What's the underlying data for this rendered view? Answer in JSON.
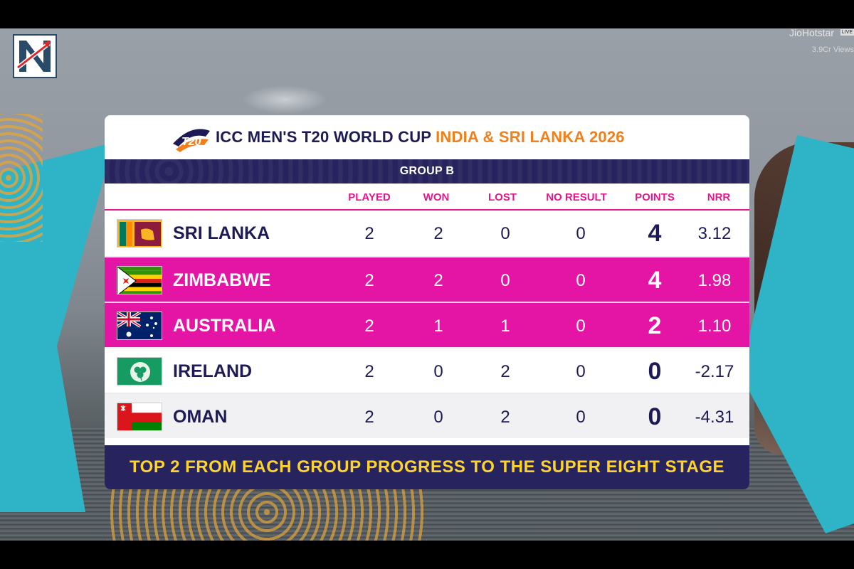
{
  "broadcast": {
    "name": "JioHotstar",
    "live": "LIVE",
    "views": "3.9Cr Views"
  },
  "header": {
    "title": "ICC MEN'S T20 WORLD CUP",
    "title_accent": "INDIA & SRI LANKA 2026",
    "logo_text": "T20"
  },
  "group": "GROUP B",
  "columns": [
    "PLAYED",
    "WON",
    "LOST",
    "NO RESULT",
    "POINTS",
    "NRR"
  ],
  "rows": [
    {
      "team": "SRI LANKA",
      "played": "2",
      "won": "2",
      "lost": "0",
      "no_result": "0",
      "points": "4",
      "nrr": "3.12",
      "highlight": false
    },
    {
      "team": "ZIMBABWE",
      "played": "2",
      "won": "2",
      "lost": "0",
      "no_result": "0",
      "points": "4",
      "nrr": "1.98",
      "highlight": true
    },
    {
      "team": "AUSTRALIA",
      "played": "2",
      "won": "1",
      "lost": "1",
      "no_result": "0",
      "points": "2",
      "nrr": "1.10",
      "highlight": true
    },
    {
      "team": "IRELAND",
      "played": "2",
      "won": "0",
      "lost": "2",
      "no_result": "0",
      "points": "0",
      "nrr": "-2.17",
      "highlight": false
    },
    {
      "team": "OMAN",
      "played": "2",
      "won": "0",
      "lost": "2",
      "no_result": "0",
      "points": "0",
      "nrr": "-4.31",
      "highlight": false
    }
  ],
  "footer": "TOP 2 FROM EACH GROUP PROGRESS TO THE SUPER EIGHT STAGE",
  "colors": {
    "navy": "#26235e",
    "magenta": "#e414a5",
    "orange": "#f07f1c",
    "yellow": "#ffd42a"
  }
}
